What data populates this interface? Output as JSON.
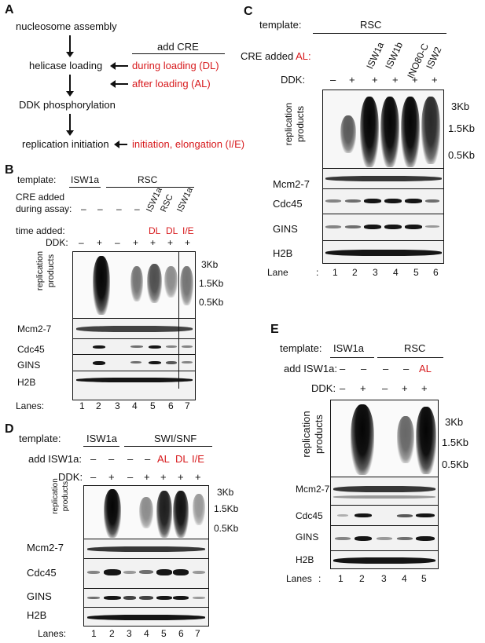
{
  "panelA": {
    "letter": "A",
    "steps": [
      "nucleosome assembly",
      "helicase loading",
      "DDK phosphorylation",
      "replication initiation"
    ],
    "add_cre_header": "add CRE",
    "cre_options": [
      "during loading (DL)",
      "after loading (AL)",
      "initiation, elongation (I/E)"
    ]
  },
  "panelB": {
    "letter": "B",
    "template_label": "template:",
    "template_isw1a": "ISW1a",
    "template_rsc": "RSC",
    "cre_added_line1": "CRE added",
    "cre_added_line2": "during assay:",
    "cre_values": [
      "–",
      "–",
      "–",
      "–"
    ],
    "cre_rotated": [
      "ISW1a",
      "RSC",
      "ISW1a"
    ],
    "time_added_label": "time added:",
    "time_values": [
      "DL",
      "DL",
      "I/E"
    ],
    "ddk_label": "DDK:",
    "ddk": [
      "–",
      "+",
      "–",
      "+",
      "+",
      "+",
      "+"
    ],
    "repl_label_1": "replication",
    "repl_label_2": "products",
    "markers": [
      "3Kb",
      "1.5Kb",
      "0.5Kb"
    ],
    "rows": [
      "Mcm2-7",
      "Cdc45",
      "GINS",
      "H2B"
    ],
    "lanes_label": "Lanes:",
    "lanes": [
      "1",
      "2",
      "3",
      "4",
      "5",
      "6",
      "7"
    ]
  },
  "panelC": {
    "letter": "C",
    "template_label": "template:",
    "template_rsc": "RSC",
    "cre_added_label": "CRE added ",
    "cre_added_al": "AL:",
    "cre_rotated": [
      "ISW1a",
      "ISW1b",
      "INO80-C",
      "ISW2"
    ],
    "ddk_label": "DDK:",
    "ddk": [
      "–",
      "+",
      "+",
      "+",
      "+",
      "+"
    ],
    "repl_label_1": "replication",
    "repl_label_2": "products",
    "markers": [
      "3Kb",
      "1.5Kb",
      "0.5Kb"
    ],
    "rows": [
      "Mcm2-7",
      "Cdc45",
      "GINS",
      "H2B"
    ],
    "lanes_label": "Lane",
    "lanes_colon": ":",
    "lanes": [
      "1",
      "2",
      "3",
      "4",
      "5",
      "6"
    ]
  },
  "panelD": {
    "letter": "D",
    "template_label": "template:",
    "template_isw1a": "ISW1a",
    "template_swisnf": "SWI/SNF",
    "add_label": "add ISW1a:",
    "add_values": [
      "–",
      "–",
      "–",
      "–"
    ],
    "add_red": [
      "AL",
      "DL",
      "I/E"
    ],
    "ddk_label": "DDK:",
    "ddk": [
      "–",
      "+",
      "–",
      "+",
      "+",
      "+",
      "+"
    ],
    "repl_label_1": "replication",
    "repl_label_2": "products",
    "markers": [
      "3Kb",
      "1.5Kb",
      "0.5Kb"
    ],
    "rows": [
      "Mcm2-7",
      "Cdc45",
      "GINS",
      "H2B"
    ],
    "lanes_label": "Lanes:",
    "lanes": [
      "1",
      "2",
      "3",
      "4",
      "5",
      "6",
      "7"
    ]
  },
  "panelE": {
    "letter": "E",
    "template_label": "template:",
    "template_isw1a": "ISW1a",
    "template_rsc": "RSC",
    "add_label": "add ISW1a:",
    "add_values": [
      "–",
      "–",
      "–",
      "–"
    ],
    "add_red": "AL",
    "ddk_label": "DDK:",
    "ddk": [
      "–",
      "+",
      "–",
      "+",
      "+"
    ],
    "repl_label_1": "replication",
    "repl_label_2": "products",
    "markers": [
      "3Kb",
      "1.5Kb",
      "0.5Kb"
    ],
    "rows": [
      "Mcm2-7",
      "Cdc45",
      "GINS",
      "H2B"
    ],
    "lanes_label": "Lanes",
    "lanes_colon": ":",
    "lanes": [
      "1",
      "2",
      "3",
      "4",
      "5"
    ]
  },
  "colors": {
    "red_text": "#d7191c",
    "band": "#151515",
    "background": "#ffffff"
  }
}
